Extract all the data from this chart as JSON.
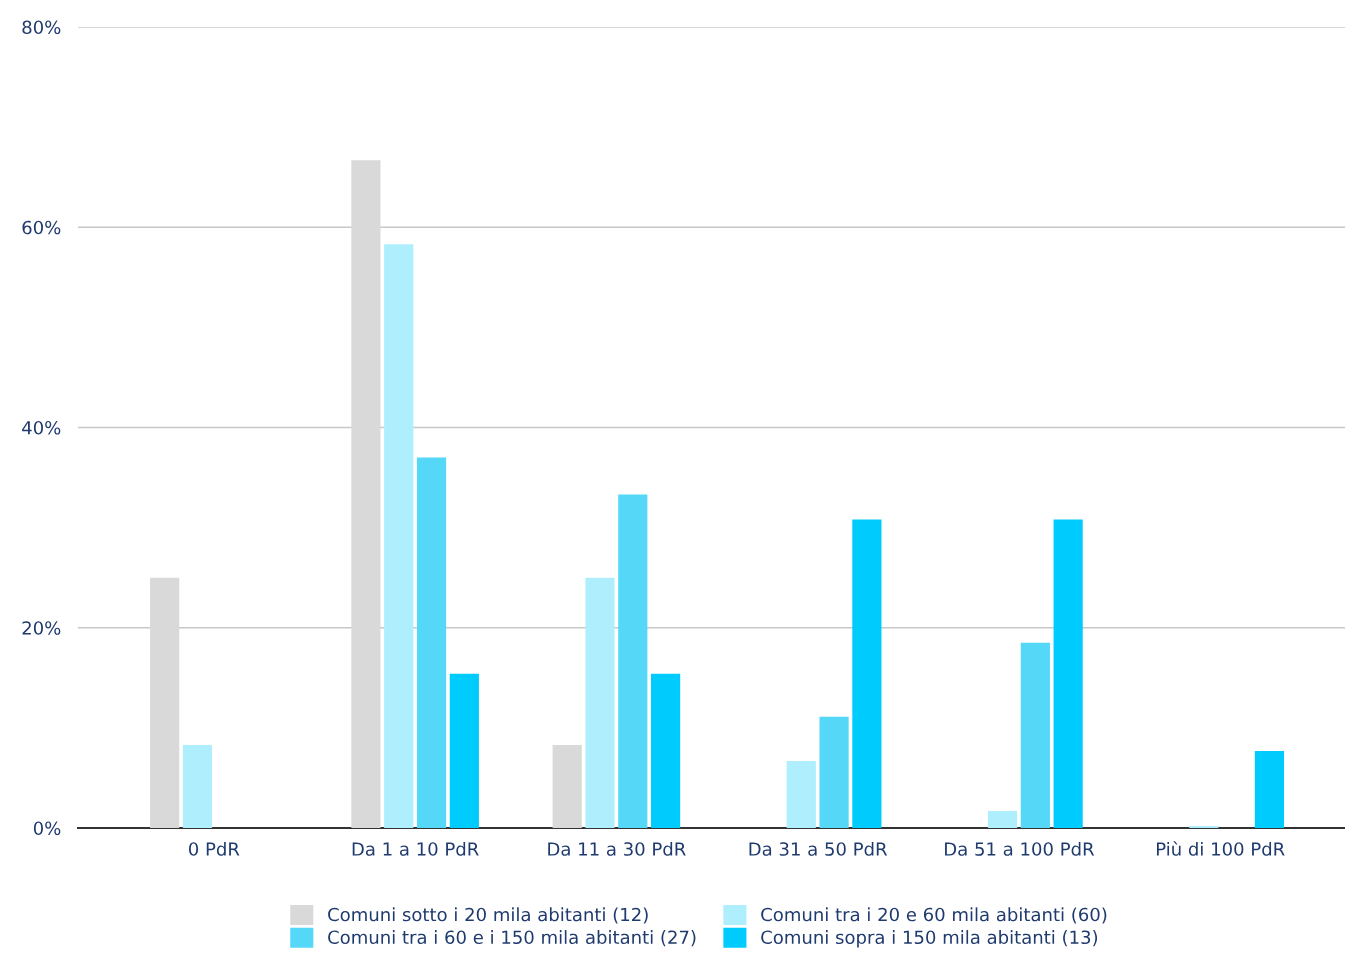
{
  "chart_data": {
    "type": "bar",
    "categories": [
      "0 PdR",
      "Da 1 a 10 PdR",
      "Da 11 a 30 PdR",
      "Da 31 a 50 PdR",
      "Da 51 a 100 PdR",
      "Più di 100 PdR"
    ],
    "series": [
      {
        "name": "Comuni sotto i 20 mila abitanti (12)",
        "color": "#d9d9d9",
        "values": [
          25,
          66.7,
          8.3,
          0,
          0,
          0
        ]
      },
      {
        "name": "Comuni tra i 20 e 60 mila abitanti (60)",
        "color": "#aeeefd",
        "values": [
          8.3,
          58.3,
          25,
          6.7,
          1.7,
          0.2
        ]
      },
      {
        "name": "Comuni tra i 60 e i 150 mila abitanti (27)",
        "color": "#55d8f8",
        "values": [
          0,
          37,
          33.3,
          11.1,
          18.5,
          0
        ]
      },
      {
        "name": "Comuni sopra i 150 mila abitanti (13)",
        "color": "#00cbfd",
        "values": [
          0,
          15.4,
          15.4,
          30.8,
          30.8,
          7.7
        ]
      }
    ],
    "ylim": [
      0,
      80
    ],
    "yticks": [
      {
        "value": 0,
        "label": "0%"
      },
      {
        "value": 20,
        "label": "20%"
      },
      {
        "value": 40,
        "label": "40%"
      },
      {
        "value": 60,
        "label": "60%"
      },
      {
        "value": 80,
        "label": "80%"
      }
    ],
    "grid": "y",
    "legend": "bottom"
  }
}
